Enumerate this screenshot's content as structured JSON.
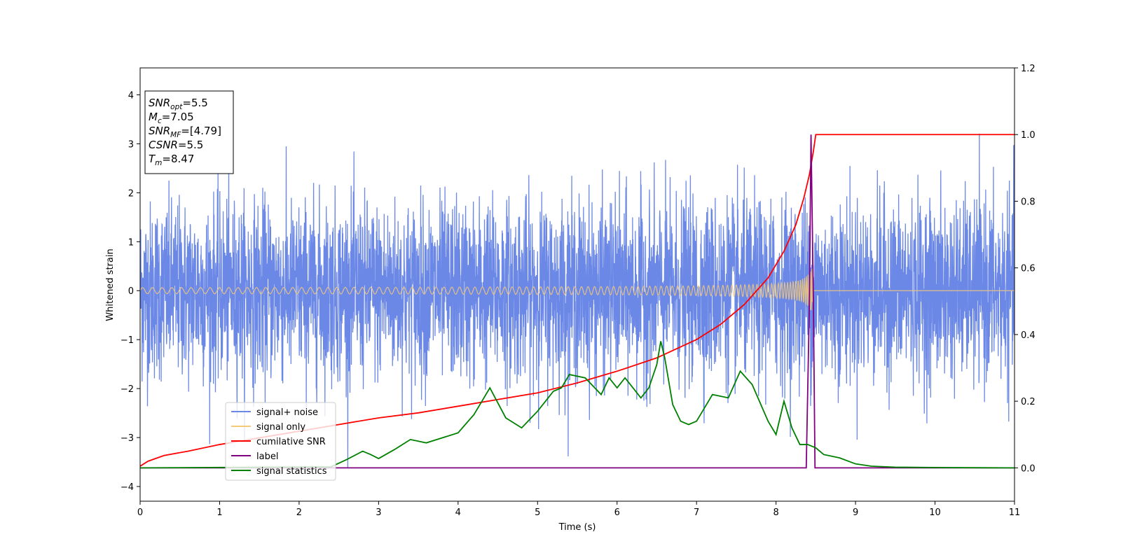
{
  "chart_data": {
    "type": "line",
    "xlabel": "Time (s)",
    "ylabel": "Whitened strain",
    "xlim": [
      0,
      11
    ],
    "ylim_left": [
      -4.3,
      4.55
    ],
    "ylim_right": [
      -0.1,
      1.2
    ],
    "x_ticks": [
      "0",
      "1",
      "2",
      "3",
      "4",
      "5",
      "6",
      "7",
      "8",
      "9",
      "10",
      "11"
    ],
    "y_left_ticks": [
      "4",
      "3",
      "2",
      "1",
      "0",
      "−1",
      "−2",
      "−3",
      "−4"
    ],
    "y_right_ticks": [
      "1.2",
      "1.0",
      "0.8",
      "0.6",
      "0.4",
      "0.2",
      "0.0"
    ],
    "grid": false,
    "legend_position": "lower-left",
    "annotation_box": {
      "position": "top-left",
      "lines": [
        {
          "base": "SNR",
          "sub": "opt",
          "rest": "=5.5"
        },
        {
          "base": "M",
          "sub": "c",
          "rest": "=7.05"
        },
        {
          "base": "SNR",
          "sub": "MF",
          "rest": "=[4.79]"
        },
        {
          "base": "CSNR",
          "sub": "",
          "rest": "=5.5"
        },
        {
          "base": "T",
          "sub": "m",
          "rest": "=8.47"
        }
      ]
    },
    "series": [
      {
        "name": "signal+ noise",
        "color": "#6b88e6",
        "axis": "left",
        "kind": "gaussian-noise",
        "std": 0.9,
        "t_range": [
          0,
          11
        ]
      },
      {
        "name": "signal only",
        "color": "#f5c97a",
        "axis": "left",
        "kind": "chirp",
        "merger_time": 8.47,
        "peak_amplitude": 0.45
      },
      {
        "name": "cumilative SNR",
        "color": "#ff0000",
        "axis": "right",
        "x": [
          0,
          0.1,
          0.3,
          0.6,
          1,
          1.5,
          2,
          2.5,
          3,
          3.5,
          4,
          4.5,
          5,
          5.5,
          6,
          6.5,
          7,
          7.3,
          7.6,
          7.9,
          8.1,
          8.25,
          8.35,
          8.42,
          8.47,
          8.5,
          11
        ],
        "y": [
          0.005,
          0.02,
          0.037,
          0.05,
          0.07,
          0.09,
          0.11,
          0.13,
          0.15,
          0.165,
          0.185,
          0.205,
          0.225,
          0.255,
          0.29,
          0.33,
          0.385,
          0.43,
          0.49,
          0.57,
          0.65,
          0.73,
          0.81,
          0.88,
          0.95,
          1.0,
          1.0
        ]
      },
      {
        "name": "label",
        "color": "#800080",
        "axis": "right",
        "x": [
          0,
          8.38,
          8.42,
          8.44,
          8.47,
          8.49,
          11
        ],
        "y": [
          0,
          0,
          0.5,
          1.0,
          0.5,
          0,
          0
        ]
      },
      {
        "name": "signal statistics",
        "color": "#008000",
        "axis": "right",
        "x": [
          0,
          2.4,
          2.6,
          2.8,
          2.9,
          3.0,
          3.2,
          3.4,
          3.6,
          3.8,
          4.0,
          4.2,
          4.3,
          4.4,
          4.6,
          4.8,
          5.0,
          5.1,
          5.2,
          5.3,
          5.4,
          5.6,
          5.8,
          5.9,
          6.0,
          6.1,
          6.2,
          6.3,
          6.4,
          6.5,
          6.55,
          6.6,
          6.7,
          6.8,
          6.9,
          7.0,
          7.1,
          7.2,
          7.4,
          7.55,
          7.7,
          7.9,
          8.0,
          8.1,
          8.2,
          8.3,
          8.4,
          8.5,
          8.6,
          8.8,
          9.0,
          9.2,
          9.5,
          10,
          11
        ],
        "y": [
          0,
          0.003,
          0.025,
          0.05,
          0.04,
          0.028,
          0.055,
          0.085,
          0.075,
          0.09,
          0.105,
          0.16,
          0.2,
          0.24,
          0.15,
          0.12,
          0.17,
          0.2,
          0.23,
          0.24,
          0.28,
          0.27,
          0.22,
          0.27,
          0.24,
          0.27,
          0.24,
          0.21,
          0.24,
          0.31,
          0.38,
          0.33,
          0.19,
          0.14,
          0.13,
          0.14,
          0.18,
          0.22,
          0.21,
          0.29,
          0.25,
          0.14,
          0.1,
          0.2,
          0.12,
          0.07,
          0.07,
          0.06,
          0.04,
          0.03,
          0.012,
          0.005,
          0.002,
          0.001,
          0
        ]
      }
    ]
  }
}
